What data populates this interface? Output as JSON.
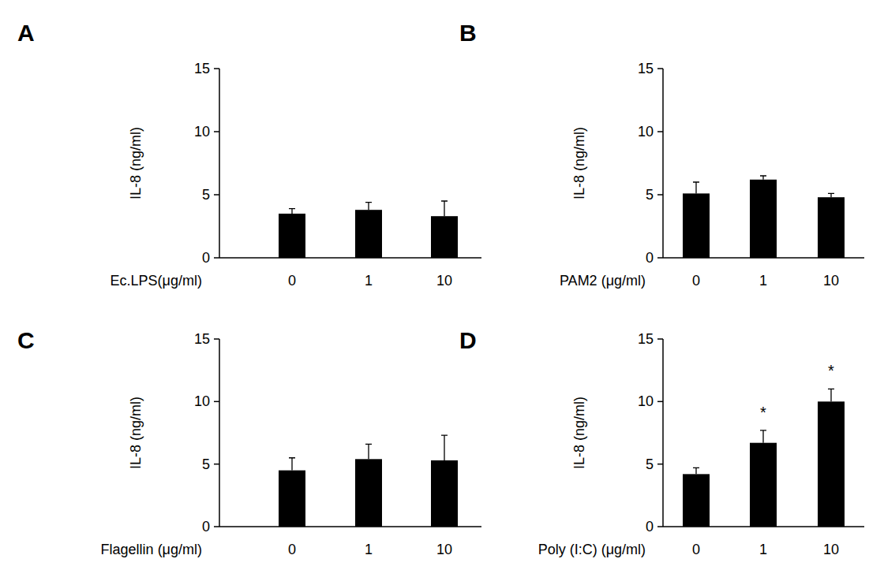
{
  "chart_data": [
    {
      "type": "bar",
      "title": "A",
      "x_label": "Ec.LPS(μg/ml)",
      "y_label": "IL-8 (ng/ml)",
      "categories": [
        "0",
        "1",
        "10"
      ],
      "values": [
        3.5,
        3.8,
        3.3
      ],
      "errors": [
        0.4,
        0.6,
        1.2
      ],
      "color": "#000000",
      "ylim": [
        0,
        15
      ],
      "yticks": [
        0,
        5,
        10,
        15
      ],
      "grid": false
    },
    {
      "type": "bar",
      "title": "B",
      "x_label": "PAM2 (μg/ml)",
      "y_label": "IL-8 (ng/ml)",
      "categories": [
        "0",
        "1",
        "10"
      ],
      "values": [
        5.1,
        6.2,
        4.8
      ],
      "errors": [
        0.9,
        0.3,
        0.3
      ],
      "color": "#000000",
      "ylim": [
        0,
        15
      ],
      "yticks": [
        0,
        5,
        10,
        15
      ],
      "grid": false
    },
    {
      "type": "bar",
      "title": "C",
      "x_label": "Flagellin (μg/ml)",
      "y_label": "IL-8 (ng/ml)",
      "categories": [
        "0",
        "1",
        "10"
      ],
      "values": [
        4.5,
        5.4,
        5.3
      ],
      "errors": [
        1.0,
        1.2,
        2.0
      ],
      "color": "#000000",
      "ylim": [
        0,
        15
      ],
      "yticks": [
        0,
        5,
        10,
        15
      ],
      "grid": false
    },
    {
      "type": "bar",
      "title": "D",
      "x_label": "Poly (I:C) (μg/ml)",
      "y_label": "IL-8 (ng/ml)",
      "categories": [
        "0",
        "1",
        "10"
      ],
      "values": [
        4.2,
        6.7,
        10.0
      ],
      "errors": [
        0.5,
        1.0,
        1.0
      ],
      "significance": [
        null,
        "*",
        "*"
      ],
      "color": "#000000",
      "ylim": [
        0,
        15
      ],
      "yticks": [
        0,
        5,
        10,
        15
      ],
      "grid": false
    }
  ]
}
